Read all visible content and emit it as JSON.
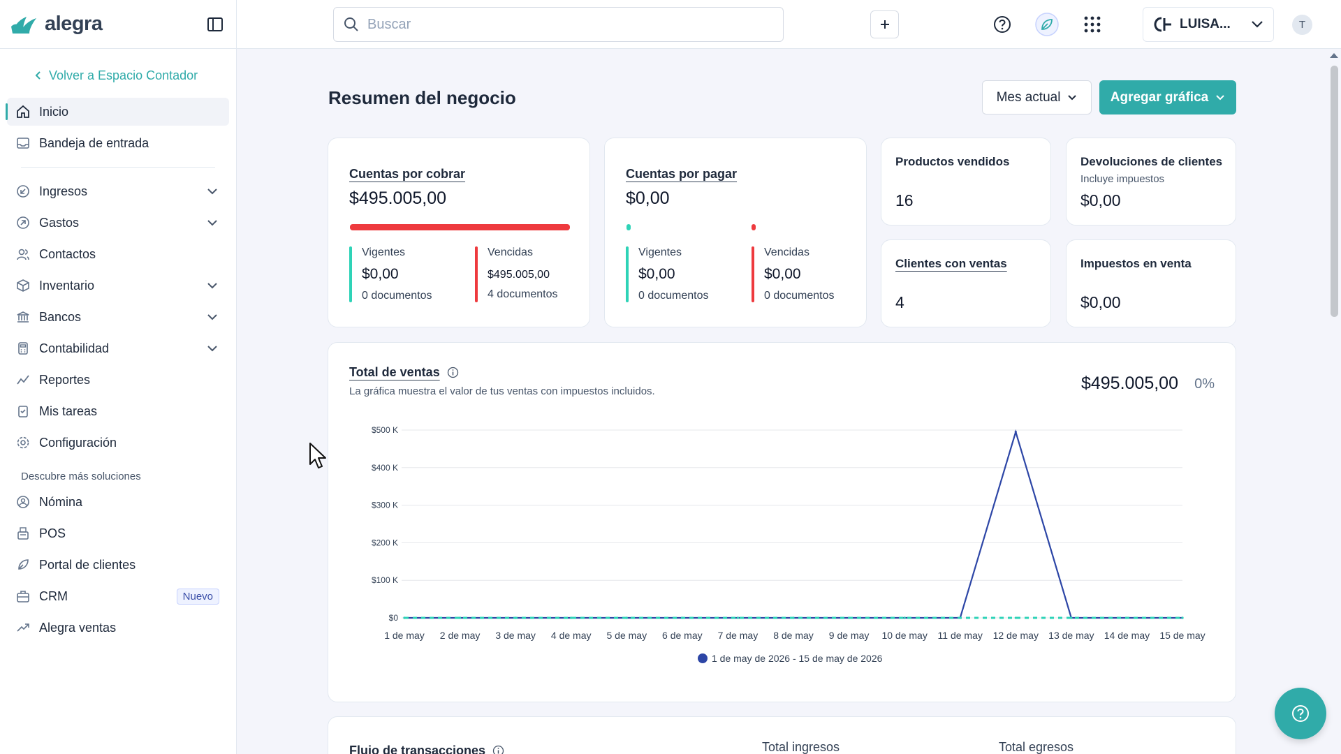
{
  "brand": {
    "name": "alegra",
    "accent": "#30aba9"
  },
  "sidebar": {
    "back_link": "Volver a Espacio Contador",
    "items": [
      {
        "label": "Inicio",
        "icon": "home-icon",
        "active": true
      },
      {
        "label": "Bandeja de entrada",
        "icon": "inbox-icon"
      },
      {
        "label": "Ingresos",
        "icon": "income-icon",
        "expandable": true
      },
      {
        "label": "Gastos",
        "icon": "expenses-icon",
        "expandable": true
      },
      {
        "label": "Contactos",
        "icon": "contacts-icon"
      },
      {
        "label": "Inventario",
        "icon": "inventory-icon",
        "expandable": true
      },
      {
        "label": "Bancos",
        "icon": "bank-icon",
        "expandable": true
      },
      {
        "label": "Contabilidad",
        "icon": "accounting-icon",
        "expandable": true
      },
      {
        "label": "Reportes",
        "icon": "reports-icon"
      },
      {
        "label": "Mis tareas",
        "icon": "tasks-icon"
      },
      {
        "label": "Configuración",
        "icon": "gear-icon"
      }
    ],
    "section_label": "Descubre más soluciones",
    "solutions": [
      {
        "label": "Nómina",
        "icon": "payroll-icon"
      },
      {
        "label": "POS",
        "icon": "pos-icon"
      },
      {
        "label": "Portal de clientes",
        "icon": "portal-icon"
      },
      {
        "label": "CRM",
        "icon": "crm-icon",
        "badge": "Nuevo"
      },
      {
        "label": "Alegra ventas",
        "icon": "sales-icon"
      }
    ]
  },
  "topbar": {
    "search_placeholder": "Buscar",
    "company_name": "LUISA...",
    "avatar_initial": "T"
  },
  "main": {
    "title": "Resumen del negocio",
    "period_label": "Mes actual",
    "add_chart_label": "Agregar gráfica",
    "receivables": {
      "title": "Cuentas por cobrar",
      "total": "$495.005,00",
      "current": {
        "label": "Vigentes",
        "value": "$0,00",
        "docs": "0 documentos"
      },
      "overdue": {
        "label": "Vencidas",
        "value": "$495.005,00",
        "docs": "4 documentos"
      }
    },
    "payables": {
      "title": "Cuentas por pagar",
      "total": "$0,00",
      "current": {
        "label": "Vigentes",
        "value": "$0,00",
        "docs": "0 documentos"
      },
      "overdue": {
        "label": "Vencidas",
        "value": "$0,00",
        "docs": "0 documentos"
      }
    },
    "products_sold": {
      "title": "Productos vendidos",
      "value": "16"
    },
    "returns": {
      "title": "Devoluciones de clientes",
      "subtitle": "Incluye impuestos",
      "value": "$0,00"
    },
    "clients_with_sales": {
      "title": "Clientes con ventas",
      "value": "4"
    },
    "sales_taxes": {
      "title": "Impuestos en venta",
      "value": "$0,00"
    },
    "sales_chart": {
      "title": "Total de ventas",
      "description": "La gráfica muestra el valor de tus ventas con impuestos incluidos.",
      "total": "$495.005,00",
      "change": "0%"
    },
    "flow": {
      "title": "Flujo de transacciones",
      "total_income_label": "Total ingresos",
      "total_expense_label": "Total egresos"
    }
  },
  "chart_data": {
    "type": "line",
    "title": "Total de ventas",
    "categories": [
      "1 de may",
      "2 de may",
      "3 de may",
      "4 de may",
      "5 de may",
      "6 de may",
      "7 de may",
      "8 de may",
      "9 de may",
      "10 de may",
      "11 de may",
      "12 de may",
      "13 de may",
      "14 de may",
      "15 de may"
    ],
    "y_ticks": [
      "$0",
      "$100 K",
      "$200 K",
      "$300 K",
      "$400 K",
      "$500 K"
    ],
    "ylim": [
      0,
      500000
    ],
    "grid": true,
    "legend_position": "bottom",
    "series": [
      {
        "name": "1 de may de 2026 - 15 de may de 2026",
        "color": "#2d46a6",
        "values": [
          0,
          0,
          0,
          0,
          0,
          0,
          0,
          0,
          0,
          0,
          0,
          495005,
          0,
          0,
          0
        ]
      },
      {
        "color": "#2ed3b7",
        "dashed": true,
        "values": [
          0,
          0,
          0,
          0,
          0,
          0,
          0,
          0,
          0,
          0,
          0,
          0,
          0,
          0,
          0
        ]
      }
    ]
  }
}
